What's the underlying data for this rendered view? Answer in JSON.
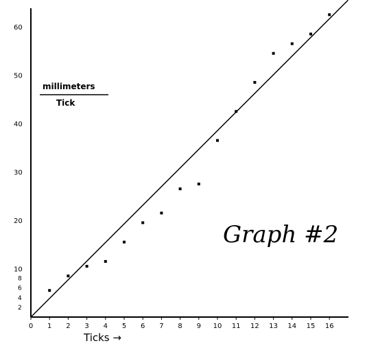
{
  "chart_data": {
    "type": "scatter",
    "title": "Graph #2",
    "xlabel": "Ticks →",
    "ylabel_lines": [
      "millimeters",
      "Tick"
    ],
    "xlim": [
      0,
      17
    ],
    "ylim": [
      0,
      64
    ],
    "x_ticks": [
      0,
      1,
      2,
      3,
      4,
      5,
      6,
      7,
      8,
      9,
      10,
      11,
      12,
      13,
      14,
      15,
      16
    ],
    "y_ticks_major": [
      10,
      20,
      30,
      40,
      50,
      60
    ],
    "y_ticks_minor": [
      2,
      4,
      6,
      8
    ],
    "y_tick_labels": {
      "10": "10",
      "20": "20",
      "30": "30",
      "40": "40",
      "50": "50",
      "60": "60",
      "2": "2",
      "4": "4",
      "6": "6",
      "8": "8"
    },
    "series": [
      {
        "type": "scatter",
        "points": [
          {
            "x": 1,
            "y": 5.5
          },
          {
            "x": 2,
            "y": 8.5
          },
          {
            "x": 3,
            "y": 10.5
          },
          {
            "x": 4,
            "y": 11.5
          },
          {
            "x": 5,
            "y": 15.5
          },
          {
            "x": 6,
            "y": 19.5
          },
          {
            "x": 7,
            "y": 21.5
          },
          {
            "x": 8,
            "y": 26.5
          },
          {
            "x": 9,
            "y": 27.5
          },
          {
            "x": 10,
            "y": 36.5
          },
          {
            "x": 11,
            "y": 42.5
          },
          {
            "x": 12,
            "y": 48.5
          },
          {
            "x": 13,
            "y": 54.5
          },
          {
            "x": 14,
            "y": 56.5
          },
          {
            "x": 15,
            "y": 58.5
          },
          {
            "x": 16,
            "y": 62.5
          }
        ]
      },
      {
        "type": "line",
        "points": [
          {
            "x": 0,
            "y": 0
          },
          {
            "x": 17,
            "y": 65.5
          }
        ]
      }
    ]
  }
}
